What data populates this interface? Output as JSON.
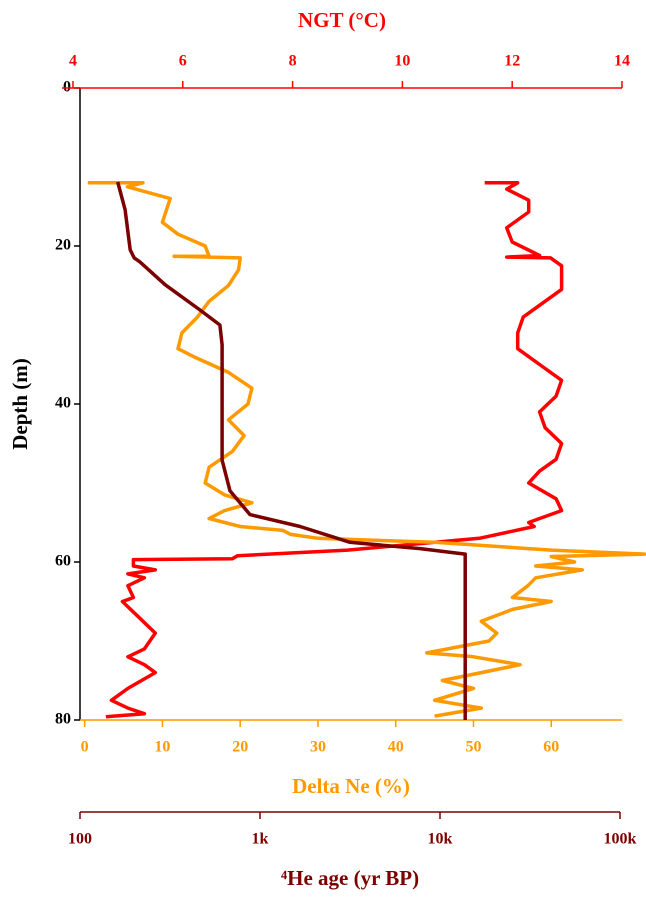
{
  "chart_data": {
    "type": "line",
    "y_label": "Depth (m)",
    "ylim": [
      0,
      80
    ],
    "yticks": [
      0,
      20,
      40,
      60,
      80
    ],
    "y_inverted": true,
    "x_axes": [
      {
        "label": "NGT (°C)",
        "color": "#ff0000",
        "position": "top",
        "xlim": [
          3.8,
          14
        ],
        "xticks": [
          4,
          6,
          8,
          10,
          12,
          14
        ]
      },
      {
        "label": "Delta Ne (%)",
        "color": "#ff9900",
        "position": "bottom",
        "xlim": [
          -0.6,
          69.1
        ],
        "xticks": [
          0,
          10,
          20,
          30,
          40,
          50,
          60
        ]
      },
      {
        "label": "⁴He age (yr BP)",
        "color": "#7b0000",
        "position": "bottom",
        "log": true,
        "xlim": [
          100,
          100000
        ],
        "xticks": [
          {
            "value": 100,
            "label": "100"
          },
          {
            "value": 1000,
            "label": "1k"
          },
          {
            "value": 10000,
            "label": "10k"
          },
          {
            "value": 100000,
            "label": "100k"
          }
        ]
      }
    ],
    "series": [
      {
        "color": "#ff0000",
        "axis": 0,
        "depth": [
          12,
          12,
          12.8,
          14.2,
          15.7,
          17.7,
          19.5,
          21.2,
          21.4,
          21.5,
          22.5,
          25.5,
          27,
          29,
          31,
          33,
          35,
          37,
          39,
          41,
          43,
          45,
          47,
          48.5,
          50,
          52,
          53.5,
          54.5,
          55,
          55.5,
          57,
          58.5,
          59.2,
          59.6,
          59.7,
          60.5,
          61,
          61.5,
          62,
          63,
          64.5,
          65,
          67,
          69,
          71,
          72,
          73,
          74,
          76,
          77.5,
          78.5,
          79.2,
          79.6
        ],
        "values": [
          11.5,
          12.1,
          11.9,
          12.3,
          12.3,
          11.9,
          12.0,
          12.5,
          11.9,
          12.7,
          12.9,
          12.9,
          12.6,
          12.2,
          12.1,
          12.1,
          12.5,
          12.9,
          12.8,
          12.5,
          12.6,
          12.9,
          12.8,
          12.5,
          12.3,
          12.8,
          12.9,
          12.5,
          12.3,
          12.4,
          11.4,
          9.0,
          7.0,
          6.9,
          5.1,
          5.1,
          5.5,
          5.0,
          5.3,
          5.0,
          5.1,
          4.9,
          5.2,
          5.5,
          5.3,
          5.0,
          5.3,
          5.5,
          5.0,
          4.7,
          5.0,
          5.3,
          4.6
        ]
      },
      {
        "color": "#ff9900",
        "axis": 1,
        "depth": [
          12,
          12,
          12.5,
          14,
          15.5,
          17,
          18.5,
          20,
          21.3,
          21.3,
          21.5,
          23,
          25,
          27,
          29,
          31,
          33,
          34,
          36,
          38,
          40,
          42,
          44,
          46,
          48,
          50,
          51.5,
          52.5,
          53.5,
          54.5,
          55.5,
          56,
          56.5,
          57,
          57.5,
          58.5,
          59,
          59.3,
          60,
          60.5,
          61,
          62,
          63,
          64.5,
          65,
          66,
          67.5,
          69,
          70,
          71.5,
          72,
          73,
          74,
          75,
          76,
          77.5,
          78.5,
          79.5
        ],
        "values": [
          0.4,
          7.5,
          5.5,
          11,
          10.5,
          10,
          12,
          15.5,
          16,
          11.5,
          20,
          19.8,
          18.5,
          16,
          14.5,
          12.5,
          12,
          14,
          18.5,
          21.5,
          21,
          18.5,
          20.5,
          19,
          16,
          15.5,
          18,
          21.5,
          18,
          16,
          20,
          25.5,
          26.5,
          30,
          45,
          60,
          72,
          60,
          63,
          58,
          64,
          58,
          57,
          55,
          60,
          55,
          51,
          53,
          52,
          44,
          50,
          56,
          51,
          46,
          50,
          45,
          51,
          45
        ]
      },
      {
        "color": "#7b0000",
        "axis": 2,
        "depth": [
          11.9,
          15.4,
          20.5,
          21.5,
          22,
          24.9,
          28.1,
          30,
          32.5,
          47.1,
          51,
          54,
          55.5,
          57.5,
          58.3,
          59,
          80
        ],
        "values": [
          162,
          178,
          190,
          200,
          215,
          297,
          464,
          599,
          616,
          616,
          681,
          880,
          1670,
          3160,
          7740,
          13800,
          13800
        ]
      }
    ]
  }
}
